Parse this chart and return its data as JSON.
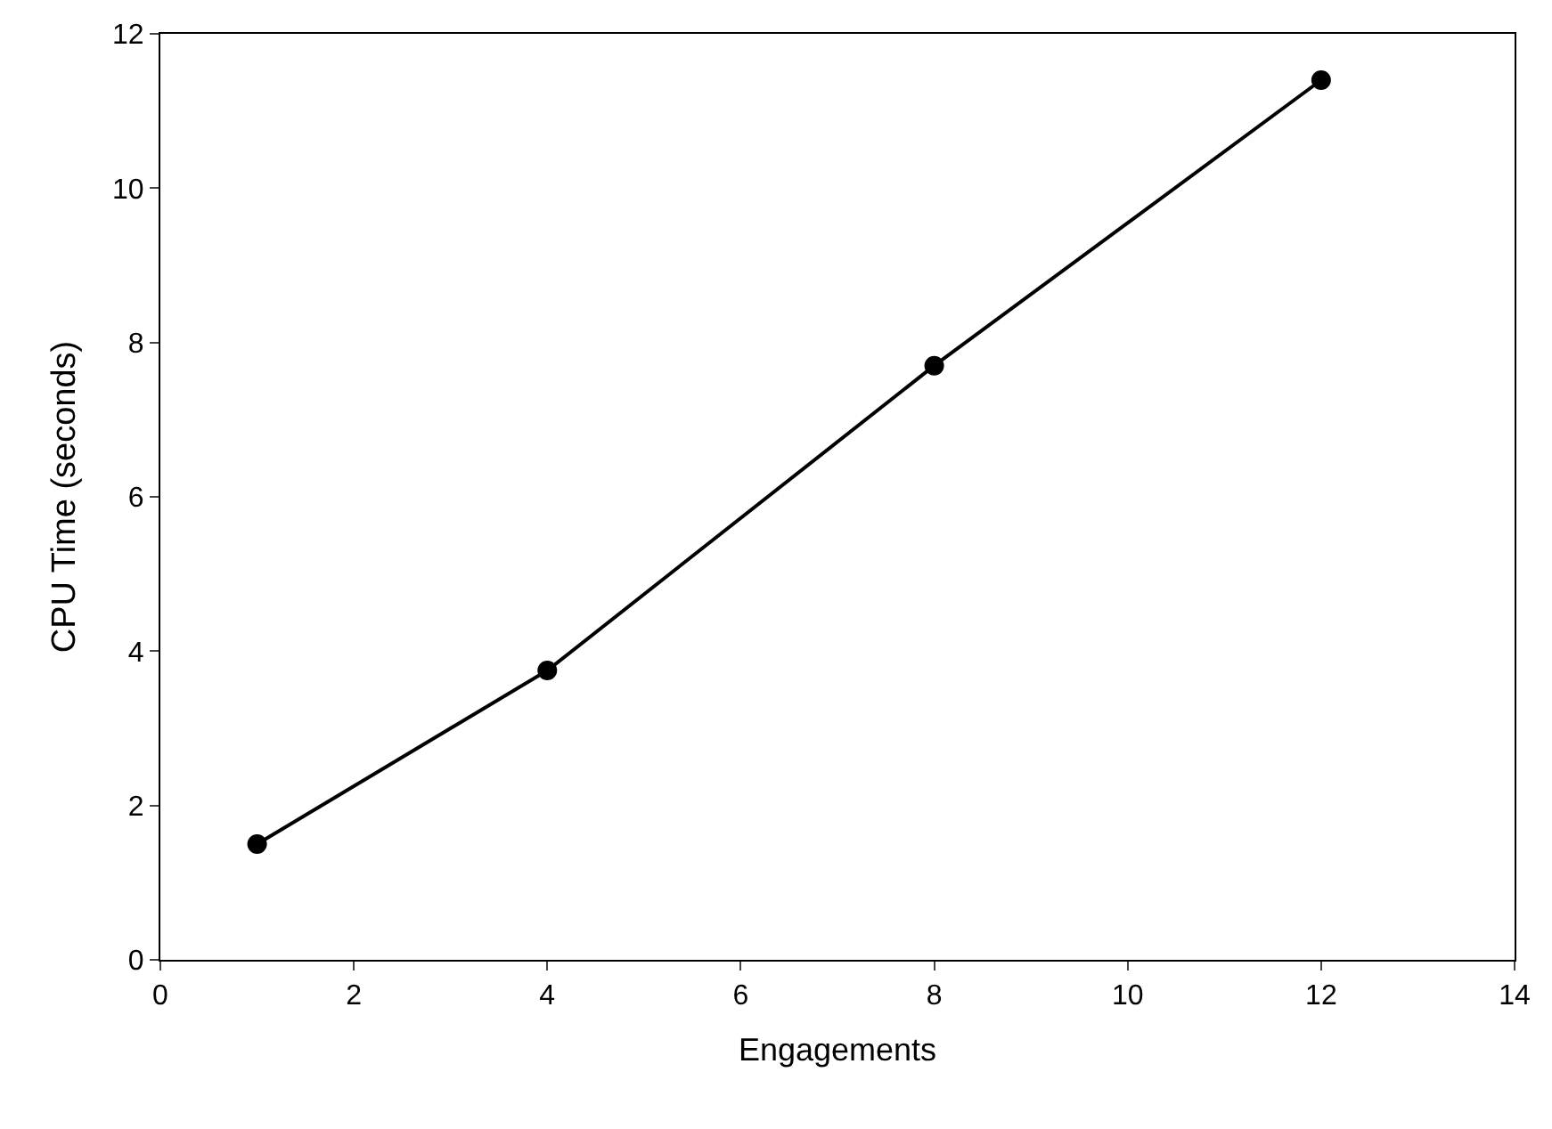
{
  "chart_data": {
    "type": "line",
    "xlabel": "Engagements",
    "ylabel": "CPU Time (seconds)",
    "x": [
      1,
      4,
      8,
      12
    ],
    "series": [
      {
        "color": "#000000",
        "values": [
          1.5,
          3.75,
          7.7,
          11.4
        ]
      }
    ],
    "xlim": [
      0,
      14
    ],
    "xticks": [
      0,
      2,
      4,
      6,
      8,
      10,
      12,
      14
    ],
    "ylim": [
      0,
      12
    ],
    "yticks": [
      0,
      2,
      4,
      6,
      8,
      10,
      12
    ],
    "marker": "circle",
    "line_style": "solid"
  }
}
